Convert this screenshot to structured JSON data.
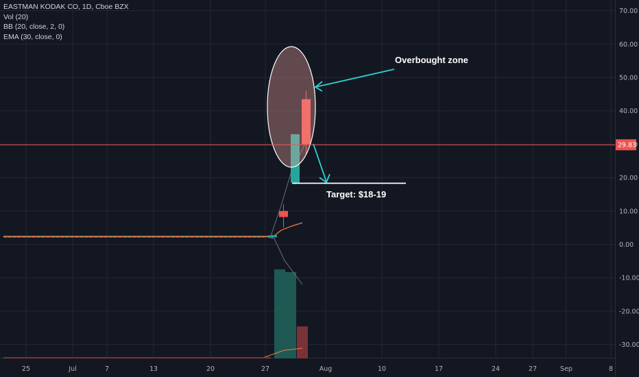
{
  "legend": {
    "symbol": "EASTMAN KODAK CO, 1D, Cboe BZX",
    "indicators": [
      "Vol (20)",
      "BB (20, close, 2, 0)",
      "EMA (30, close, 0)"
    ]
  },
  "chart_data": {
    "type": "candlestick",
    "yaxis": {
      "ticks": [
        70,
        60,
        50,
        40,
        30,
        20,
        10,
        0,
        -10,
        -20,
        -30
      ],
      "tick_labels": [
        "70.00",
        "60.00",
        "50.00",
        "40.00",
        "30.00",
        "20.00",
        "10.00",
        "0.00",
        "-10.00",
        "-20.00",
        "-30.00"
      ],
      "ylim": [
        -35,
        74
      ]
    },
    "xaxis": {
      "tick_labels": [
        "25",
        "Jul",
        "7",
        "13",
        "20",
        "27",
        "Aug",
        "10",
        "17",
        "24",
        "27",
        "Sep",
        "8"
      ]
    },
    "current_price": {
      "value": 29.83,
      "label": "29.83"
    },
    "candles": [
      {
        "date": "Jul 27",
        "open": 2.1,
        "high": 2.9,
        "low": 2.0,
        "close": 2.7,
        "dir": "up"
      },
      {
        "date": "Jul 28",
        "open": 10.0,
        "high": 12.0,
        "low": 5.0,
        "close": 8.2,
        "dir": "down"
      },
      {
        "date": "Jul 29",
        "open": 18.5,
        "high": 33.0,
        "low": 18.0,
        "close": 33.0,
        "dir": "up"
      },
      {
        "date": "Jul 30",
        "open": 43.5,
        "high": 46.0,
        "low": 27.0,
        "close": 30.0,
        "dir": "down"
      }
    ],
    "flat_history": {
      "from": "Jun 22",
      "to": "Jul 24",
      "value": 2.3
    },
    "ema": {
      "points": [
        [
          0.0,
          2.3
        ],
        [
          0.78,
          2.3
        ],
        [
          0.88,
          6.5
        ]
      ]
    },
    "volume": [
      {
        "date": "Jul 29",
        "value_pct": 100,
        "dir": "up"
      },
      {
        "date": "Jul 30",
        "value_pct": 97,
        "dir": "up"
      },
      {
        "date": "Jul 31",
        "value_pct": 36,
        "dir": "down"
      }
    ],
    "annotations": {
      "overbought_label": "Overbought zone",
      "target_label": "Target: $18-19",
      "target_value": 18.5
    },
    "colors": {
      "up": "#26a69a",
      "down": "#ef5350",
      "ema": "#f57f40",
      "price_line": "#ef5350",
      "arrow": "#2fd4d4",
      "ellipse_fill": "#f4a7a0",
      "grid": "#242832",
      "background": "#131722"
    }
  }
}
